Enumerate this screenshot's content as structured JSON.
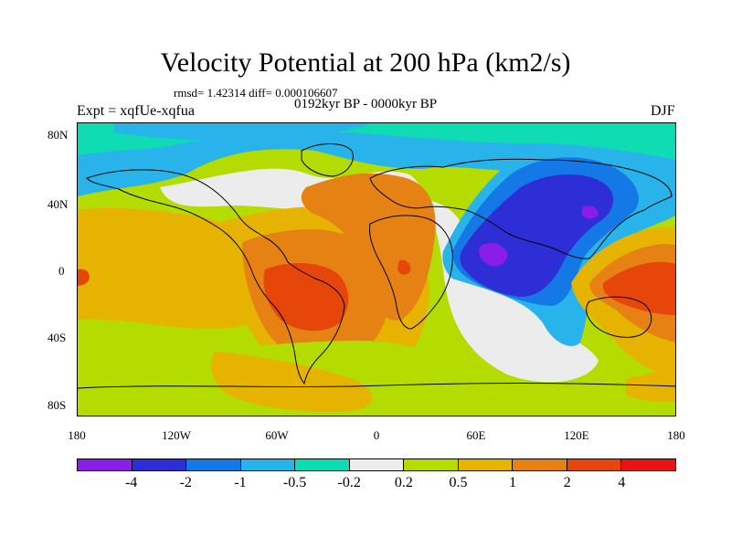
{
  "title": "Velocity Potential at 200 hPa (km2/s)",
  "stats": "rmsd= 1.42314  diff= 0.000106607",
  "period": "0192kyr BP - 0000kyr BP",
  "experiment": "Expt = xqfUe-xqfua",
  "season": "DJF",
  "map": {
    "lat_labels": [
      "80N",
      "40N",
      "0",
      "40S",
      "80S"
    ],
    "lon_labels": [
      "180",
      "120W",
      "60W",
      "0",
      "60E",
      "120E",
      "180"
    ]
  },
  "colorbar": {
    "colors": [
      "#8a1ee6",
      "#2e2ed6",
      "#1478e6",
      "#28b4ea",
      "#10dcb4",
      "#ececec",
      "#b4dc00",
      "#e6b400",
      "#e68214",
      "#e6460a",
      "#e61414"
    ],
    "labels": [
      "-4",
      "-2",
      "-1",
      "-0.5",
      "-0.2",
      "0.2",
      "0.5",
      "1",
      "2",
      "4"
    ]
  }
}
